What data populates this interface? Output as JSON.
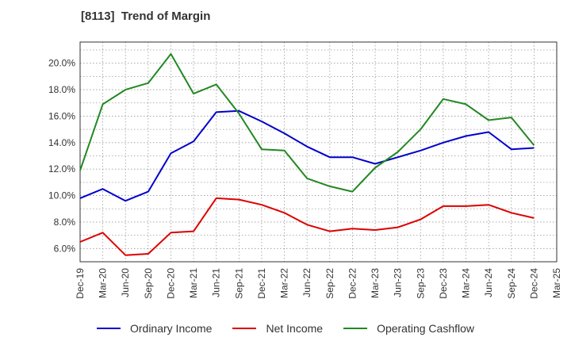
{
  "chart_data": {
    "type": "line",
    "title": "[8113]  Trend of Margin",
    "x": [
      "Dec-19",
      "Mar-20",
      "Jun-20",
      "Sep-20",
      "Dec-20",
      "Mar-21",
      "Jun-21",
      "Sep-21",
      "Dec-21",
      "Mar-22",
      "Jun-22",
      "Sep-22",
      "Dec-22",
      "Mar-23",
      "Jun-23",
      "Sep-23",
      "Dec-23",
      "Mar-24",
      "Jun-24",
      "Sep-24",
      "Dec-24",
      "Mar-25"
    ],
    "y_ticks": [
      "6.0%",
      "8.0%",
      "10.0%",
      "12.0%",
      "14.0%",
      "16.0%",
      "18.0%",
      "20.0%"
    ],
    "y_tick_values": [
      6,
      8,
      10,
      12,
      14,
      16,
      18,
      20
    ],
    "ylim": [
      5.0,
      21.6
    ],
    "grid": true,
    "legend_position": "bottom",
    "series": [
      {
        "name": "Ordinary Income",
        "color": "#0000cc",
        "values": [
          9.8,
          10.5,
          9.6,
          10.3,
          13.2,
          14.1,
          16.3,
          16.4,
          15.6,
          14.7,
          13.7,
          12.9,
          12.9,
          12.4,
          12.9,
          13.4,
          14.0,
          14.5,
          14.8,
          13.5,
          13.6,
          null
        ]
      },
      {
        "name": "Net Income",
        "color": "#dd0000",
        "values": [
          6.5,
          7.2,
          5.5,
          5.6,
          7.2,
          7.3,
          9.8,
          9.7,
          9.3,
          8.7,
          7.8,
          7.3,
          7.5,
          7.4,
          7.6,
          8.2,
          9.2,
          9.2,
          9.3,
          8.7,
          8.3,
          null
        ]
      },
      {
        "name": "Operating Cashflow",
        "color": "#228822",
        "values": [
          11.9,
          16.9,
          18.0,
          18.5,
          20.7,
          17.7,
          18.4,
          16.2,
          13.5,
          13.4,
          11.3,
          10.7,
          10.3,
          12.1,
          13.3,
          15.0,
          17.3,
          16.9,
          15.7,
          15.9,
          13.8,
          null
        ]
      }
    ]
  }
}
